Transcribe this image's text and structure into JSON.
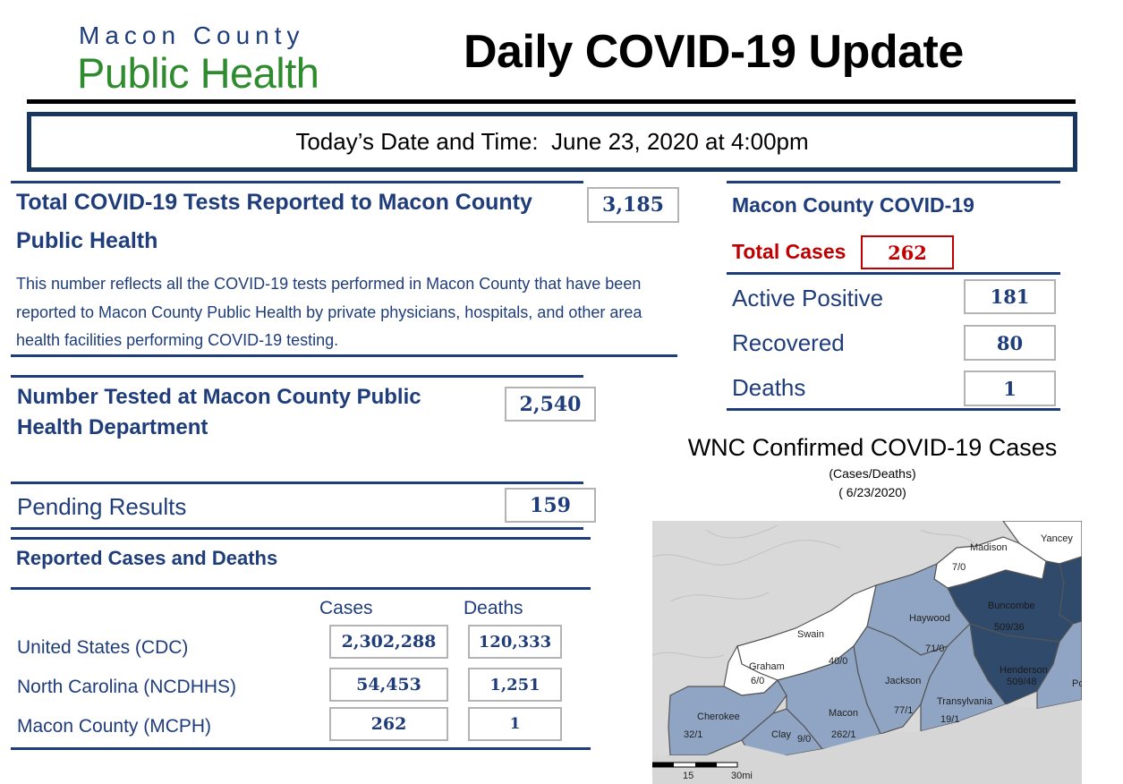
{
  "header": {
    "logo_line1": "Macon County",
    "logo_line2": "Public Health",
    "title": "Daily COVID-19 Update",
    "date_line": "Today’s Date and Time:  June 23, 2020 at 4:00pm"
  },
  "total_tests": {
    "heading_line1": "Total COVID-19 Tests Reported to Macon County",
    "heading_line2": "Public Health",
    "value": "3,185",
    "description": "This number reflects all the COVID-19 tests performed in Macon County that have been reported to Macon County Public Health by private physicians, hospitals, and other area health facilities performing COVID-19 testing."
  },
  "tested_at_mcph": {
    "heading_line1": "Number Tested at Macon County Public",
    "heading_line2": "Health Department",
    "value": "2,540"
  },
  "pending": {
    "label": "Pending Results",
    "value": "159"
  },
  "reported": {
    "heading": "Reported Cases and Deaths",
    "col_cases": "Cases",
    "col_deaths": "Deaths",
    "rows": [
      {
        "label": "United States (CDC)",
        "cases": "2,302,288",
        "deaths": "120,333"
      },
      {
        "label": "North Carolina (NCDHHS)",
        "cases": "54,453",
        "deaths": "1,251"
      },
      {
        "label": "Macon County (MCPH)",
        "cases": "262",
        "deaths": "1"
      }
    ]
  },
  "macon_summary": {
    "heading": "Macon County COVID-19",
    "total_label": "Total Cases",
    "total_value": "262",
    "rows": [
      {
        "label": "Active Positive",
        "value": "181"
      },
      {
        "label": "Recovered",
        "value": "80"
      },
      {
        "label": "Deaths",
        "value": "1"
      }
    ]
  },
  "map": {
    "title": "WNC Confirmed COVID-19 Cases",
    "subtitle": "(Cases/Deaths)",
    "date": "( 6/23/2020)",
    "counties": [
      {
        "name": "Madison",
        "value": "7/0"
      },
      {
        "name": "Yancey",
        "value": ""
      },
      {
        "name": "Buncombe",
        "value": "509/36"
      },
      {
        "name": "Haywood",
        "value": "71/0"
      },
      {
        "name": "Swain",
        "value": "40/0"
      },
      {
        "name": "Graham",
        "value": "6/0"
      },
      {
        "name": "Henderson",
        "value": "509/48"
      },
      {
        "name": "Jackson",
        "value": "77/1"
      },
      {
        "name": "Transylvania",
        "value": "19/1"
      },
      {
        "name": "Cherokee",
        "value": "32/1"
      },
      {
        "name": "Macon",
        "value": "262/1"
      },
      {
        "name": "Clay",
        "value": "9/0"
      },
      {
        "name": "Po",
        "value": ""
      }
    ],
    "scale_labels": [
      "15",
      "30mi"
    ],
    "colors": {
      "high": "#2f4a6b",
      "mid": "#8fa5c3",
      "low": "#ffffff",
      "border": "#555555"
    }
  }
}
